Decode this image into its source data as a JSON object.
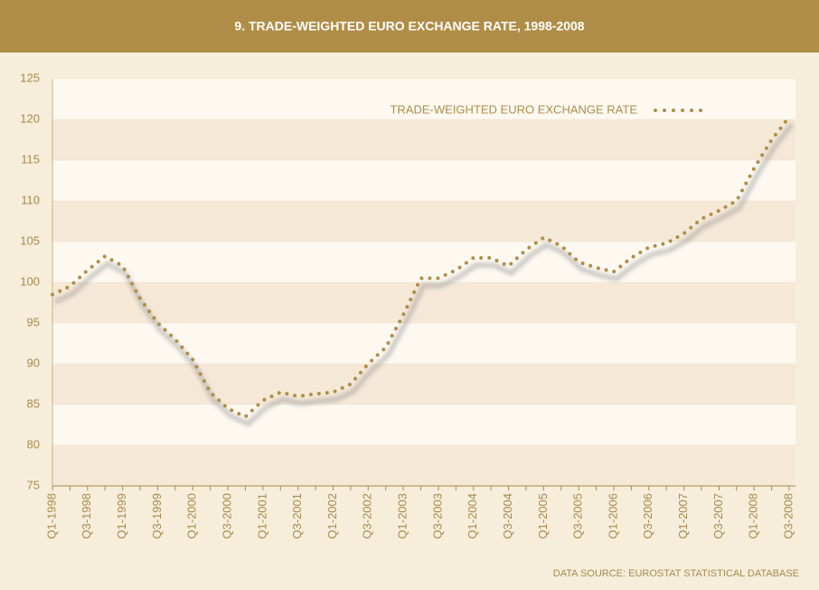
{
  "chart_data": {
    "type": "line",
    "title": "9. TRADE-WEIGHTED EURO EXCHANGE RATE, 1998-2008",
    "source": "DATA SOURCE: EUROSTAT STATISTICAL DATABASE",
    "categories": [
      "Q1-1998",
      null,
      "Q3-1998",
      null,
      "Q1-1999",
      null,
      "Q3-1999",
      null,
      "Q1-2000",
      null,
      "Q3-2000",
      null,
      "Q1-2001",
      null,
      "Q3-2001",
      null,
      "Q1-2002",
      null,
      "Q3-2002",
      null,
      "Q1-2003",
      null,
      "Q3-2003",
      null,
      "Q1-2004",
      null,
      "Q3-2004",
      null,
      "Q1-2005",
      null,
      "Q3-2005",
      null,
      "Q1-2006",
      null,
      "Q3-2006",
      null,
      "Q1-2007",
      null,
      "Q3-2007",
      null,
      "Q1-2008",
      null,
      "Q3-2008"
    ],
    "series": [
      {
        "name": "TRADE-WEIGHTED EURO EXCHANGE RATE",
        "color": "#b08d47",
        "values": [
          98.5,
          99.5,
          101.5,
          103.2,
          102,
          98,
          95,
          93,
          90.5,
          86.5,
          84.5,
          83.5,
          85.5,
          86.5,
          86,
          86.3,
          86.5,
          87.5,
          90,
          92,
          96,
          100.5,
          100.5,
          101.5,
          103,
          103,
          102,
          104,
          105.5,
          104.5,
          102.5,
          101.8,
          101.3,
          103,
          104.3,
          104.8,
          106,
          107.8,
          108.8,
          110,
          114,
          117.5,
          120.3
        ]
      }
    ],
    "ylim": [
      75,
      125
    ],
    "yticks": [
      75,
      80,
      85,
      90,
      95,
      100,
      105,
      110,
      115,
      120,
      125
    ],
    "legend": "top right",
    "grid": true
  }
}
